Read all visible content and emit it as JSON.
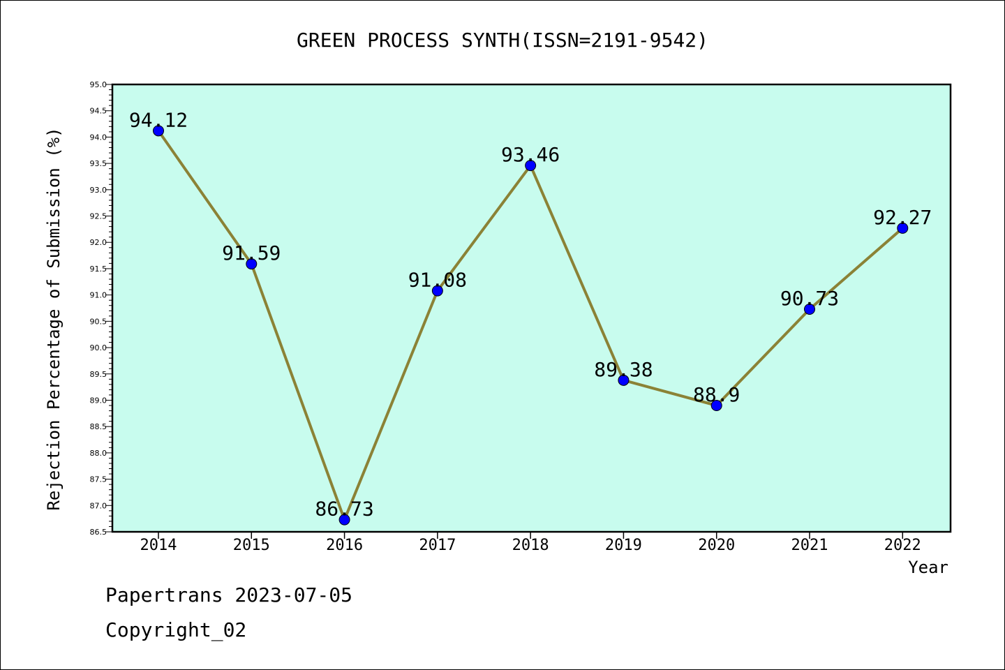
{
  "chart_data": {
    "type": "line",
    "title": "GREEN PROCESS SYNTH(ISSN=2191-9542)",
    "xlabel": "Year",
    "ylabel": "Rejection Percentage of Submission (%)",
    "categories": [
      "2014",
      "2015",
      "2016",
      "2017",
      "2018",
      "2019",
      "2020",
      "2021",
      "2022"
    ],
    "series": [
      {
        "values": [
          94.12,
          91.59,
          86.73,
          91.08,
          93.46,
          89.38,
          88.9,
          90.73,
          92.27
        ],
        "labels": [
          "94.12",
          "91.59",
          "86.73",
          "91.08",
          "93.46",
          "89.38",
          "88.9",
          "90.73",
          "92.27"
        ]
      }
    ],
    "ylim": [
      86.5,
      95.0
    ],
    "yticks": [
      "86.5",
      "87.0",
      "87.5",
      "88.0",
      "88.5",
      "89.0",
      "89.5",
      "90.0",
      "90.5",
      "91.0",
      "91.5",
      "92.0",
      "92.5",
      "93.0",
      "93.5",
      "94.0",
      "94.5",
      "95.0"
    ],
    "grid": false,
    "colors": {
      "plot_background": "#c8fcee",
      "line": "#8b8236",
      "marker": "#0000ff"
    }
  },
  "footer": {
    "line1": "Papertrans 2023-07-05",
    "line2": "Copyright_02"
  }
}
